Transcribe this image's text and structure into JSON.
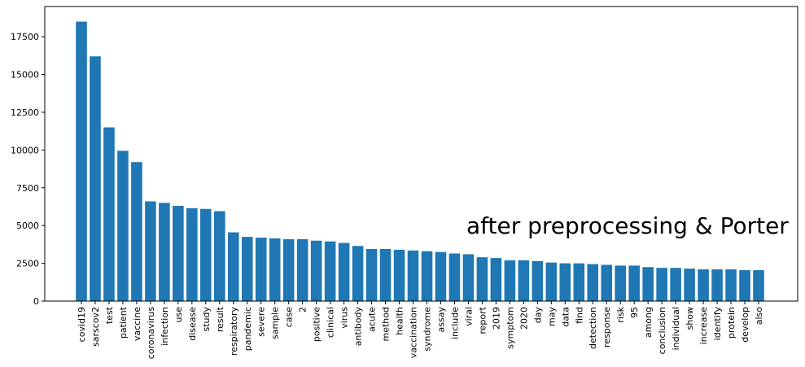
{
  "chart_data": {
    "type": "bar",
    "title": "",
    "xlabel": "",
    "ylabel": "",
    "ylim": [
      0,
      19500
    ],
    "yticks": [
      0,
      2500,
      5000,
      7500,
      10000,
      12500,
      15000,
      17500
    ],
    "ytick_labels": [
      "0",
      "2500",
      "5000",
      "7500",
      "10000",
      "12500",
      "15000",
      "17500"
    ],
    "grid": false,
    "bar_color": "#1f77b4",
    "annotation": "after preprocessing & Porter",
    "categories": [
      "covid19",
      "sarscov2",
      "test",
      "patient",
      "vaccine",
      "coronavirus",
      "infection",
      "use",
      "disease",
      "study",
      "result",
      "respiratory",
      "pandemic",
      "severe",
      "sample",
      "case",
      "2",
      "positive",
      "clinical",
      "virus",
      "antibody",
      "acute",
      "method",
      "health",
      "vaccination",
      "syndrome",
      "assay",
      "include",
      "viral",
      "report",
      "2019",
      "symptom",
      "2020",
      "day",
      "may",
      "data",
      "find",
      "detection",
      "response",
      "risk",
      "95",
      "among",
      "conclusion",
      "individual",
      "show",
      "increase",
      "identify",
      "protein",
      "develop",
      "also"
    ],
    "values": [
      18500,
      16200,
      11500,
      9950,
      9200,
      6600,
      6500,
      6300,
      6150,
      6100,
      5950,
      4550,
      4250,
      4200,
      4150,
      4100,
      4100,
      4000,
      3950,
      3850,
      3650,
      3450,
      3450,
      3400,
      3350,
      3300,
      3250,
      3150,
      3100,
      2900,
      2850,
      2700,
      2700,
      2650,
      2550,
      2500,
      2500,
      2450,
      2400,
      2350,
      2350,
      2250,
      2200,
      2200,
      2150,
      2100,
      2100,
      2100,
      2050,
      2050
    ]
  }
}
